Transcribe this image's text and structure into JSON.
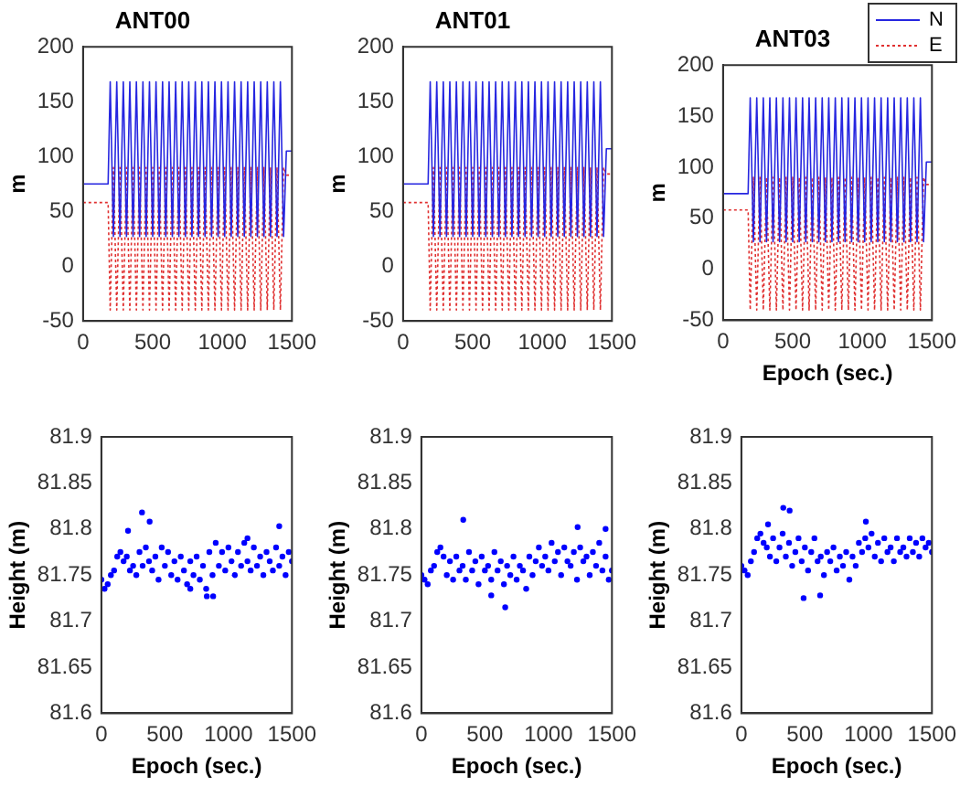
{
  "chart_data": [
    {
      "type": "line",
      "title": "ANT00",
      "ylabel": "m",
      "x": [
        0,
        180,
        195,
        218,
        242,
        265,
        289,
        312,
        336,
        359,
        383,
        406,
        430,
        453,
        477,
        500,
        524,
        547,
        571,
        594,
        618,
        641,
        665,
        688,
        712,
        735,
        759,
        782,
        806,
        829,
        853,
        876,
        900,
        923,
        947,
        970,
        994,
        1017,
        1041,
        1064,
        1088,
        1111,
        1135,
        1158,
        1182,
        1205,
        1229,
        1252,
        1276,
        1299,
        1323,
        1346,
        1370,
        1393,
        1417,
        1440,
        1460,
        1500
      ],
      "series": [
        {
          "color": "#2626e0",
          "line_style": "solid",
          "values": [
            75,
            75,
            168,
            27,
            168,
            27,
            168,
            27,
            168,
            27,
            168,
            27,
            168,
            27,
            168,
            27,
            168,
            27,
            168,
            27,
            168,
            27,
            168,
            27,
            168,
            27,
            168,
            27,
            168,
            27,
            168,
            27,
            168,
            27,
            168,
            27,
            168,
            27,
            168,
            27,
            168,
            27,
            168,
            27,
            168,
            27,
            168,
            27,
            168,
            27,
            168,
            27,
            168,
            27,
            168,
            27,
            105,
            105
          ]
        },
        {
          "color": "#e03030",
          "line_style": "dotted",
          "values": [
            58,
            58,
            -40,
            90,
            -40,
            90,
            -40,
            90,
            -40,
            90,
            -40,
            90,
            -40,
            90,
            -40,
            90,
            -40,
            90,
            -40,
            90,
            -40,
            90,
            -40,
            90,
            -40,
            90,
            -40,
            90,
            -40,
            90,
            -40,
            90,
            -40,
            90,
            -40,
            90,
            -40,
            90,
            -40,
            90,
            -40,
            90,
            -40,
            90,
            -40,
            90,
            -40,
            90,
            -40,
            90,
            -40,
            90,
            -40,
            90,
            -40,
            90,
            83,
            83
          ]
        }
      ],
      "xlim": [
        0,
        1500
      ],
      "xticks": [
        0,
        500,
        1000,
        1500
      ],
      "ylim": [
        -50,
        200
      ],
      "yticks": [
        -50,
        0,
        50,
        100,
        150,
        200
      ]
    },
    {
      "type": "line",
      "title": "ANT01",
      "ylabel": "m",
      "x": [
        0,
        180,
        195,
        218,
        242,
        265,
        289,
        312,
        336,
        359,
        383,
        406,
        430,
        453,
        477,
        500,
        524,
        547,
        571,
        594,
        618,
        641,
        665,
        688,
        712,
        735,
        759,
        782,
        806,
        829,
        853,
        876,
        900,
        923,
        947,
        970,
        994,
        1017,
        1041,
        1064,
        1088,
        1111,
        1135,
        1158,
        1182,
        1205,
        1229,
        1252,
        1276,
        1299,
        1323,
        1346,
        1370,
        1393,
        1417,
        1440,
        1460,
        1500
      ],
      "series": [
        {
          "color": "#2626e0",
          "line_style": "solid",
          "values": [
            75,
            75,
            168,
            27,
            168,
            27,
            168,
            27,
            168,
            27,
            168,
            27,
            168,
            27,
            168,
            27,
            168,
            27,
            168,
            27,
            168,
            27,
            168,
            27,
            168,
            27,
            168,
            27,
            168,
            27,
            168,
            27,
            168,
            27,
            168,
            27,
            168,
            27,
            168,
            27,
            168,
            27,
            168,
            27,
            168,
            27,
            168,
            27,
            168,
            27,
            168,
            27,
            168,
            27,
            168,
            27,
            107,
            107
          ]
        },
        {
          "color": "#e03030",
          "line_style": "dotted",
          "values": [
            58,
            58,
            -40,
            90,
            -40,
            90,
            -40,
            90,
            -40,
            90,
            -40,
            90,
            -40,
            90,
            -40,
            90,
            -40,
            90,
            -40,
            90,
            -40,
            90,
            -40,
            90,
            -40,
            90,
            -40,
            90,
            -40,
            90,
            -40,
            90,
            -40,
            90,
            -40,
            90,
            -40,
            90,
            -40,
            90,
            -40,
            90,
            -40,
            90,
            -40,
            90,
            -40,
            90,
            -40,
            90,
            -40,
            90,
            -40,
            90,
            -40,
            90,
            84,
            84
          ]
        }
      ],
      "xlim": [
        0,
        1500
      ],
      "xticks": [
        0,
        500,
        1000,
        1500
      ],
      "ylim": [
        -50,
        200
      ],
      "yticks": [
        -50,
        0,
        50,
        100,
        150,
        200
      ]
    },
    {
      "type": "line",
      "title": "ANT03",
      "xlabel": "Epoch (sec.)",
      "ylabel": "m",
      "legend": "top right",
      "x": [
        0,
        180,
        195,
        218,
        242,
        265,
        289,
        312,
        336,
        359,
        383,
        406,
        430,
        453,
        477,
        500,
        524,
        547,
        571,
        594,
        618,
        641,
        665,
        688,
        712,
        735,
        759,
        782,
        806,
        829,
        853,
        876,
        900,
        923,
        947,
        970,
        994,
        1017,
        1041,
        1064,
        1088,
        1111,
        1135,
        1158,
        1182,
        1205,
        1229,
        1252,
        1276,
        1299,
        1323,
        1346,
        1370,
        1393,
        1417,
        1440,
        1460,
        1500
      ],
      "series": [
        {
          "name": "N",
          "color": "#2626e0",
          "line_style": "solid",
          "values": [
            74,
            74,
            168,
            27,
            168,
            27,
            168,
            27,
            168,
            27,
            168,
            27,
            168,
            27,
            168,
            27,
            168,
            27,
            168,
            27,
            168,
            27,
            168,
            27,
            168,
            27,
            168,
            27,
            168,
            27,
            168,
            27,
            168,
            27,
            168,
            27,
            168,
            27,
            168,
            27,
            168,
            27,
            168,
            27,
            168,
            27,
            168,
            27,
            168,
            27,
            168,
            27,
            168,
            27,
            168,
            27,
            105,
            105
          ]
        },
        {
          "name": "E",
          "color": "#e03030",
          "line_style": "dotted",
          "values": [
            58,
            58,
            -40,
            90,
            -40,
            90,
            -40,
            90,
            -40,
            90,
            -40,
            90,
            -40,
            90,
            -40,
            90,
            -40,
            90,
            -40,
            90,
            -40,
            90,
            -40,
            90,
            -40,
            90,
            -40,
            90,
            -40,
            90,
            -40,
            90,
            -40,
            90,
            -40,
            90,
            -40,
            90,
            -40,
            90,
            -40,
            90,
            -40,
            90,
            -40,
            90,
            -40,
            90,
            -40,
            90,
            -40,
            90,
            -40,
            90,
            -40,
            90,
            83,
            83
          ]
        }
      ],
      "xlim": [
        0,
        1500
      ],
      "xticks": [
        0,
        500,
        1000,
        1500
      ],
      "ylim": [
        -50,
        200
      ],
      "yticks": [
        -50,
        0,
        50,
        100,
        150,
        200
      ]
    },
    {
      "type": "scatter",
      "xlabel": "Epoch (sec.)",
      "ylabel": "Height (m)",
      "marker": "circle",
      "color": "#0000ff",
      "x": [
        0,
        25,
        50,
        75,
        100,
        125,
        150,
        175,
        200,
        225,
        250,
        275,
        300,
        325,
        350,
        375,
        400,
        425,
        450,
        475,
        500,
        525,
        550,
        575,
        600,
        625,
        650,
        675,
        700,
        725,
        750,
        775,
        800,
        825,
        850,
        875,
        900,
        925,
        950,
        975,
        1000,
        1025,
        1050,
        1075,
        1100,
        1125,
        1150,
        1175,
        1200,
        1225,
        1250,
        1275,
        1300,
        1325,
        1350,
        1375,
        1400,
        1425,
        1450,
        1475,
        1500,
        320,
        380,
        210,
        830,
        880,
        1400,
        700,
        1150
      ],
      "values": [
        81.745,
        81.735,
        81.74,
        81.75,
        81.755,
        81.77,
        81.775,
        81.765,
        81.77,
        81.755,
        81.76,
        81.75,
        81.775,
        81.76,
        81.78,
        81.765,
        81.755,
        81.77,
        81.745,
        81.78,
        81.76,
        81.775,
        81.75,
        81.765,
        81.745,
        81.77,
        81.755,
        81.74,
        81.765,
        81.75,
        81.77,
        81.745,
        81.76,
        81.735,
        81.775,
        81.75,
        81.785,
        81.76,
        81.775,
        81.755,
        81.78,
        81.765,
        81.75,
        81.775,
        81.76,
        81.785,
        81.765,
        81.755,
        81.78,
        81.76,
        81.77,
        81.75,
        81.775,
        81.765,
        81.755,
        81.78,
        81.76,
        81.77,
        81.75,
        81.775,
        81.765,
        81.818,
        81.808,
        81.798,
        81.727,
        81.727,
        81.803,
        81.735,
        81.79
      ],
      "xlim": [
        0,
        1500
      ],
      "xticks": [
        0,
        500,
        1000,
        1500
      ],
      "ylim": [
        81.6,
        81.9
      ],
      "yticks": [
        81.6,
        81.65,
        81.7,
        81.75,
        81.8,
        81.85,
        81.9
      ]
    },
    {
      "type": "scatter",
      "xlabel": "Epoch (sec.)",
      "ylabel": "Height (m)",
      "marker": "circle",
      "color": "#0000ff",
      "x": [
        0,
        25,
        50,
        75,
        100,
        125,
        150,
        175,
        200,
        225,
        250,
        275,
        300,
        325,
        350,
        375,
        400,
        425,
        450,
        475,
        500,
        525,
        550,
        575,
        600,
        625,
        650,
        675,
        700,
        725,
        750,
        775,
        800,
        825,
        850,
        875,
        900,
        925,
        950,
        975,
        1000,
        1025,
        1050,
        1075,
        1100,
        1125,
        1150,
        1175,
        1200,
        1225,
        1250,
        1275,
        1300,
        1325,
        1350,
        1375,
        1400,
        1425,
        1450,
        1475,
        1500,
        330,
        660,
        1230,
        1450,
        550
      ],
      "values": [
        81.75,
        81.745,
        81.74,
        81.755,
        81.76,
        81.775,
        81.78,
        81.77,
        81.75,
        81.765,
        81.745,
        81.77,
        81.755,
        81.76,
        81.745,
        81.775,
        81.755,
        81.765,
        81.74,
        81.77,
        81.755,
        81.76,
        81.745,
        81.775,
        81.755,
        81.765,
        81.74,
        81.76,
        81.75,
        81.77,
        81.745,
        81.76,
        81.755,
        81.735,
        81.77,
        81.75,
        81.765,
        81.78,
        81.76,
        81.77,
        81.755,
        81.785,
        81.765,
        81.775,
        81.75,
        81.78,
        81.765,
        81.76,
        81.775,
        81.745,
        81.78,
        81.765,
        81.77,
        81.75,
        81.775,
        81.76,
        81.785,
        81.755,
        81.77,
        81.745,
        81.755,
        81.81,
        81.715,
        81.802,
        81.8,
        81.728
      ],
      "xlim": [
        0,
        1500
      ],
      "xticks": [
        0,
        500,
        1000,
        1500
      ],
      "ylim": [
        81.6,
        81.9
      ],
      "yticks": [
        81.6,
        81.65,
        81.7,
        81.75,
        81.8,
        81.85,
        81.9
      ]
    },
    {
      "type": "scatter",
      "xlabel": "Epoch (sec.)",
      "ylabel": "Height (m)",
      "marker": "circle",
      "color": "#0000ff",
      "x": [
        0,
        25,
        50,
        75,
        100,
        125,
        150,
        175,
        200,
        225,
        250,
        275,
        300,
        325,
        350,
        375,
        400,
        425,
        450,
        475,
        500,
        525,
        550,
        575,
        600,
        625,
        650,
        675,
        700,
        725,
        750,
        775,
        800,
        825,
        850,
        875,
        900,
        925,
        950,
        975,
        1000,
        1025,
        1050,
        1075,
        1100,
        1125,
        1150,
        1175,
        1200,
        1225,
        1250,
        1275,
        1300,
        1325,
        1350,
        1375,
        1400,
        1425,
        1450,
        1475,
        1500,
        330,
        380,
        490,
        620,
        980,
        210
      ],
      "values": [
        81.76,
        81.755,
        81.75,
        81.765,
        81.775,
        81.79,
        81.795,
        81.785,
        81.78,
        81.77,
        81.79,
        81.765,
        81.78,
        81.795,
        81.77,
        81.785,
        81.76,
        81.775,
        81.79,
        81.765,
        81.78,
        81.755,
        81.775,
        81.79,
        81.765,
        81.77,
        81.75,
        81.775,
        81.765,
        81.78,
        81.755,
        81.77,
        81.76,
        81.775,
        81.745,
        81.77,
        81.76,
        81.785,
        81.775,
        81.79,
        81.78,
        81.795,
        81.77,
        81.785,
        81.765,
        81.79,
        81.775,
        81.78,
        81.765,
        81.79,
        81.775,
        81.78,
        81.77,
        81.79,
        81.775,
        81.785,
        81.77,
        81.79,
        81.78,
        81.785,
        81.775,
        81.823,
        81.82,
        81.725,
        81.728,
        81.808,
        81.805
      ],
      "xlim": [
        0,
        1500
      ],
      "xticks": [
        0,
        500,
        1000,
        1500
      ],
      "ylim": [
        81.6,
        81.9
      ],
      "yticks": [
        81.6,
        81.65,
        81.7,
        81.75,
        81.8,
        81.85,
        81.9
      ]
    }
  ]
}
